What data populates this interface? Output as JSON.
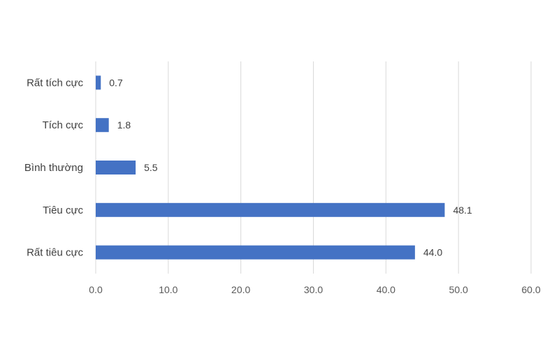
{
  "chart_data": {
    "type": "bar",
    "orientation": "horizontal",
    "categories": [
      "Rất tích cực",
      "Tích cực",
      "Bình thường",
      "Tiêu cực",
      "Rất tiêu cực"
    ],
    "values": [
      0.7,
      1.8,
      5.5,
      48.1,
      44.0
    ],
    "value_labels": [
      "0.7",
      "1.8",
      "5.5",
      "48.1",
      "44.0"
    ],
    "title": "",
    "xlabel": "",
    "ylabel": "",
    "xlim": [
      0,
      60
    ],
    "ticks": [
      0,
      10,
      20,
      30,
      40,
      50,
      60
    ],
    "tick_labels": [
      "0.0",
      "10.0",
      "20.0",
      "30.0",
      "40.0",
      "50.0",
      "60.0"
    ],
    "grid": "vertical",
    "legend": "none",
    "bar_color": "#4472C4"
  }
}
